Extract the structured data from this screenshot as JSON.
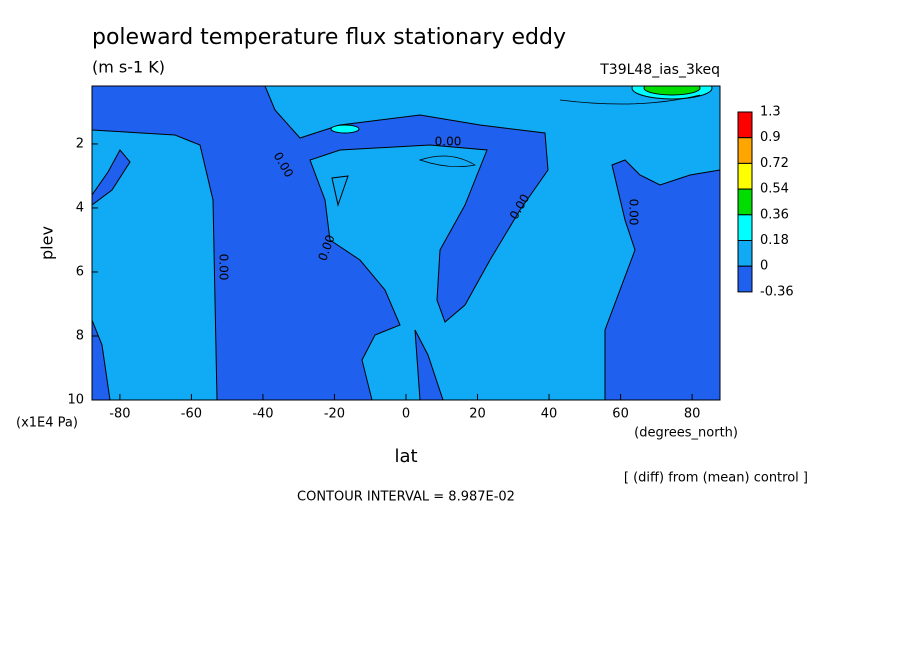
{
  "chart_data": {
    "type": "contour",
    "title": "poleward temperature flux stationary eddy",
    "subtitle": "(m s-1 K)",
    "run_label": "T39L48_ias_3keq",
    "x_label": "lat",
    "x_units": "(degrees_north)",
    "y_label": "plev",
    "y_units": "(x1E4 Pa)",
    "footnote": "[ (diff) from (mean) control ]",
    "contour_interval": "CONTOUR INTERVAL = 8.987E-02",
    "contour_labels": [
      "0.00",
      "0.00",
      "0.00",
      "0.00",
      "0.00",
      "0.00"
    ],
    "xlim": [
      -87.8,
      87.8
    ],
    "xticks": [
      -80,
      -60,
      -40,
      -20,
      0,
      20,
      40,
      60,
      80
    ],
    "ylim": [
      10,
      0.19
    ],
    "yticks": [
      2,
      4,
      6,
      8,
      10
    ],
    "levels": [
      1.3,
      0.9,
      0.72,
      0.54,
      0.36,
      0.18,
      0,
      -0.36
    ],
    "colors": [
      "#ff0000",
      "#ffa500",
      "#ffff00",
      "#00dd00",
      "#00ffff",
      "#10aaf5",
      "#2060ee"
    ]
  }
}
